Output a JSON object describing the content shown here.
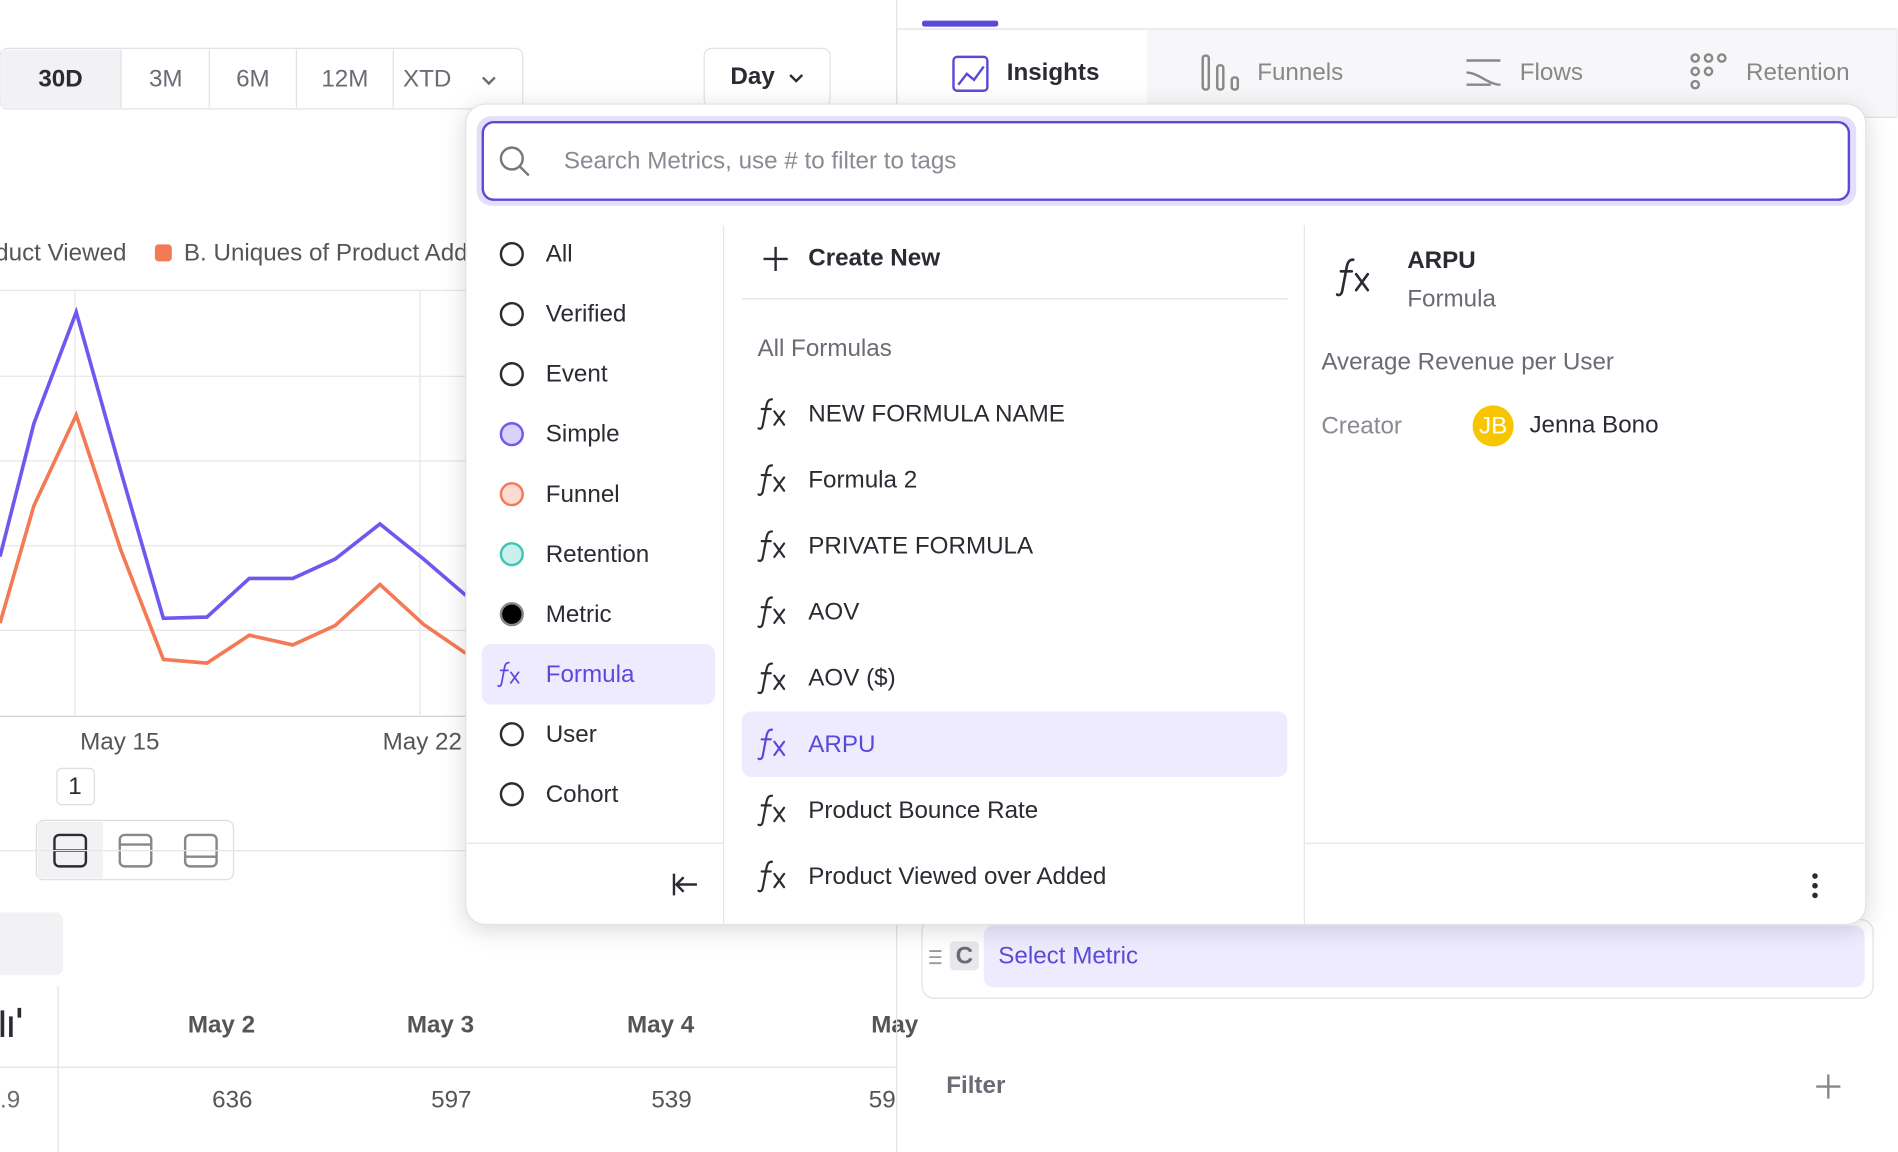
{
  "toolbar": {
    "ranges": [
      "30D",
      "3M",
      "6M",
      "12M",
      "XTD"
    ],
    "granularity": "Day"
  },
  "tabs": [
    "Insights",
    "Funnels",
    "Flows",
    "Retention"
  ],
  "legend": [
    "duct Viewed",
    "B. Uniques of Product Add"
  ],
  "chart_axis": [
    "May 15",
    "May 22"
  ],
  "page": "1",
  "table": {
    "headers": [
      "May 2",
      "May 3",
      "May 4",
      "May"
    ],
    "row_first": ".9",
    "row": [
      "636",
      "597",
      "539",
      "59"
    ]
  },
  "search": {
    "placeholder": "Search Metrics, use # to filter to tags"
  },
  "categories": [
    "All",
    "Verified",
    "Event",
    "Simple",
    "Funnel",
    "Retention",
    "Metric",
    "Formula",
    "User",
    "Cohort"
  ],
  "create": "Create New",
  "section": "All Formulas",
  "formulas": [
    "NEW FORMULA NAME",
    "Formula 2",
    "PRIVATE FORMULA",
    "AOV",
    "AOV ($)",
    "ARPU",
    "Product Bounce Rate",
    "Product Viewed over Added"
  ],
  "detail": {
    "name": "ARPU",
    "type": "Formula",
    "description": "Average Revenue per User",
    "creator_label": "Creator",
    "initials": "JB",
    "creator": "Jenna Bono"
  },
  "metric_row": {
    "letter": "C",
    "label": "Select Metric"
  },
  "filter": "Filter"
}
